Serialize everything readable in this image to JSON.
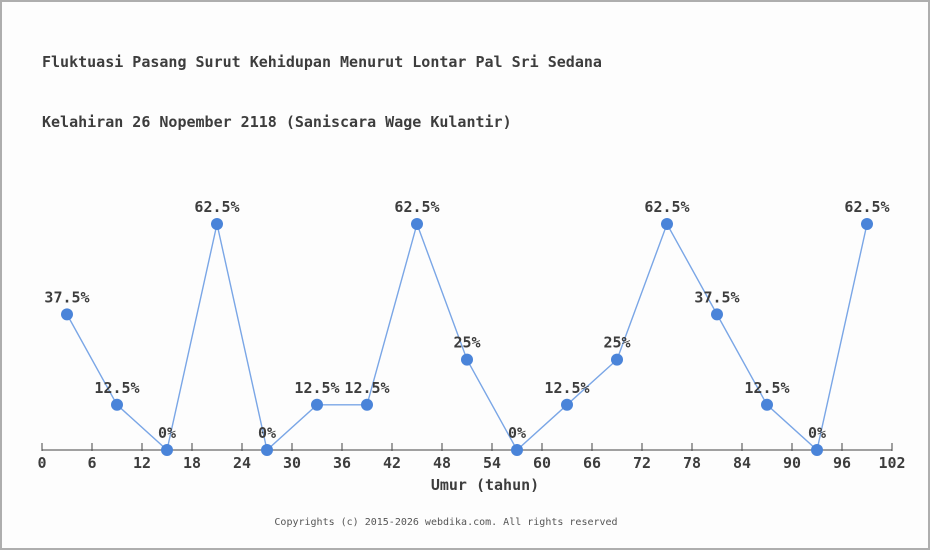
{
  "chart_data": {
    "type": "line",
    "title_lines": [
      "Fluktuasi Pasang Surut Kehidupan Menurut Lontar Pal Sri Sedana",
      "Kelahiran 26 Nopember 2118 (Saniscara Wage Kulantir)"
    ],
    "x": [
      3,
      9,
      15,
      21,
      27,
      33,
      39,
      45,
      51,
      57,
      63,
      69,
      75,
      81,
      87,
      93,
      99
    ],
    "values": [
      37.5,
      12.5,
      0,
      62.5,
      0,
      12.5,
      12.5,
      62.5,
      25,
      0,
      12.5,
      25,
      62.5,
      37.5,
      12.5,
      0,
      62.5
    ],
    "point_labels": [
      "37.5%",
      "12.5%",
      "0%",
      "62.5%",
      "0%",
      "12.5%",
      "12.5%",
      "62.5%",
      "25%",
      "0%",
      "12.5%",
      "25%",
      "62.5%",
      "37.5%",
      "12.5%",
      "0%",
      "62.5%"
    ],
    "xlabel": "Umur (tahun)",
    "x_ticks": [
      0,
      6,
      12,
      18,
      24,
      30,
      36,
      42,
      48,
      54,
      60,
      66,
      72,
      78,
      84,
      90,
      96,
      102
    ],
    "xlim": [
      0,
      102
    ],
    "ylim": [
      0,
      100
    ],
    "grid": false,
    "legend": null,
    "colors": {
      "line": "#7aa6e6",
      "marker": "#4a84d9",
      "axis": "#444444",
      "text": "#3d3d3d"
    }
  },
  "footer": {
    "text": "Copyrights (c) 2015-2026 webdika.com. All rights reserved"
  }
}
